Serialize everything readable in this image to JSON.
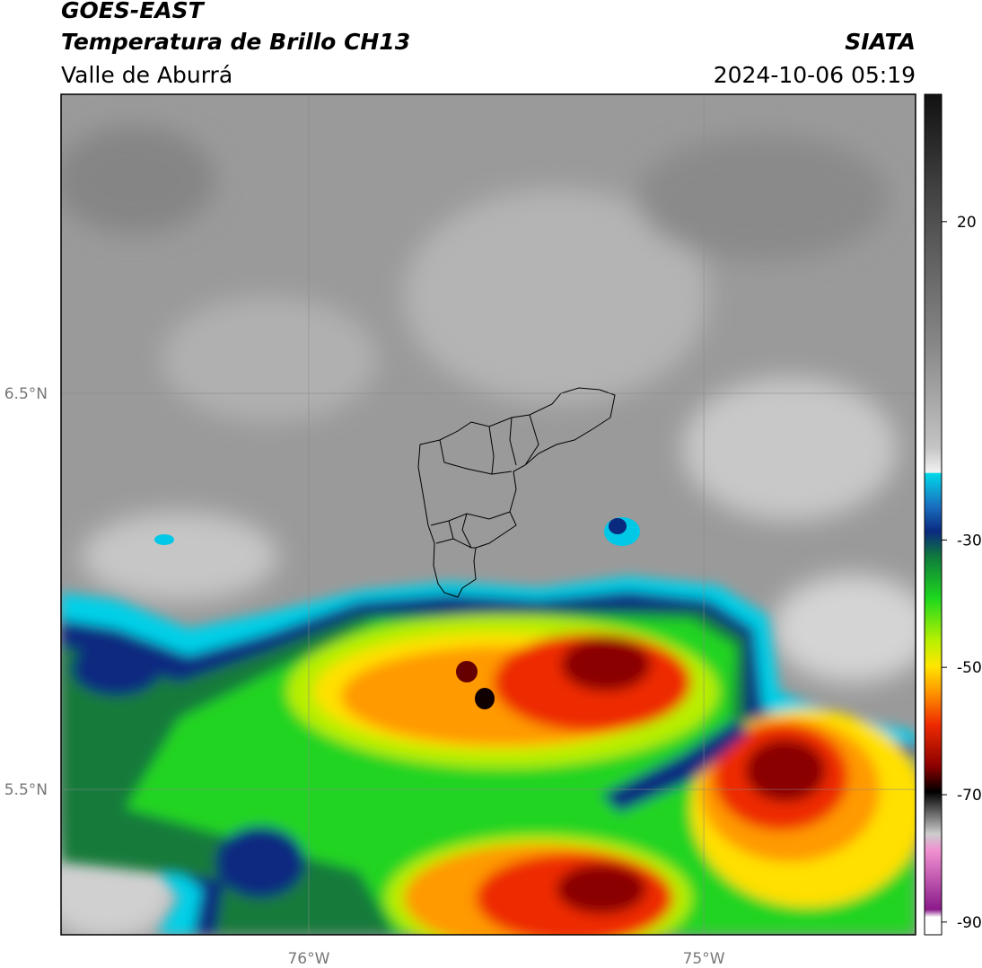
{
  "header": {
    "title": "GOES-EAST",
    "subtitle": "Temperatura de Brillo CH13",
    "region": "Valle de Aburrá",
    "source": "SIATA",
    "timestamp": "2024-10-06 05:19"
  },
  "map": {
    "xlim": [
      -76.627,
      -74.464
    ],
    "ylim": [
      5.133,
      7.255
    ],
    "xticks": [
      {
        "value": -76,
        "label": "76°W"
      },
      {
        "value": -75,
        "label": "75°W"
      }
    ],
    "yticks": [
      {
        "value": 6.5,
        "label": "6.5°N"
      },
      {
        "value": 5.5,
        "label": "5.5°N"
      }
    ],
    "grid": true
  },
  "colorbar": {
    "lim": [
      -92,
      40
    ],
    "ticks": [
      20,
      -30,
      -50,
      -70,
      -90
    ]
  }
}
